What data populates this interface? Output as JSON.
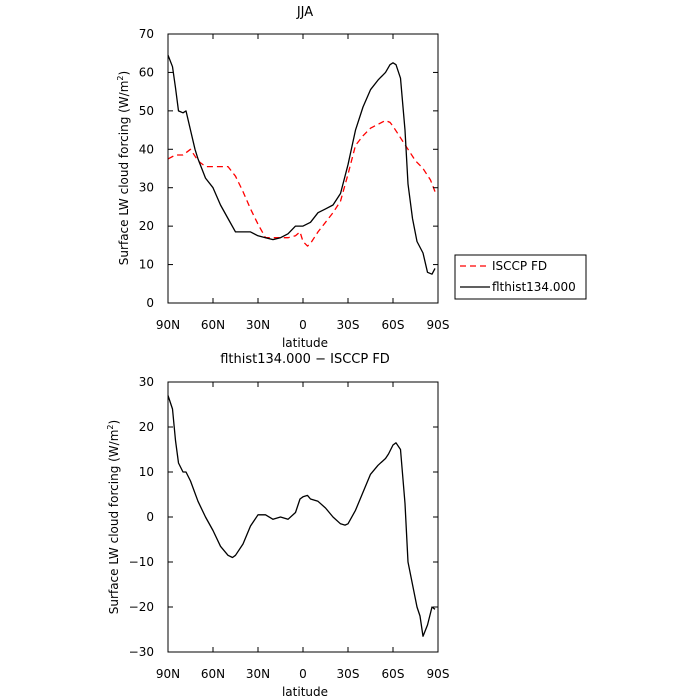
{
  "chart_data": [
    {
      "type": "line",
      "title": "JJA",
      "xlabel": "latitude",
      "ylabel": "Surface LW cloud forcing (W/m",
      "ylabel_sup": "2",
      "ylabel_end": ")",
      "xlim": [
        90,
        -90
      ],
      "ylim": [
        0,
        70
      ],
      "xticks": [
        90,
        60,
        30,
        0,
        -30,
        -60,
        -90
      ],
      "xtick_labels": [
        "90N",
        "60N",
        "30N",
        "0",
        "30S",
        "60S",
        "90S"
      ],
      "yticks": [
        0,
        10,
        20,
        30,
        40,
        50,
        60,
        70
      ],
      "ytick_labels": [
        "0",
        "10",
        "20",
        "30",
        "40",
        "50",
        "60",
        "70"
      ],
      "legend_position": "right",
      "series": [
        {
          "name": "ISCCP FD",
          "color": "#ff0000",
          "dash": "dashed",
          "x": [
            90,
            85,
            80,
            75,
            70,
            65,
            60,
            55,
            50,
            45,
            40,
            35,
            30,
            25,
            20,
            15,
            10,
            5,
            2,
            0,
            -3,
            -5,
            -10,
            -15,
            -20,
            -25,
            -30,
            -35,
            -40,
            -45,
            -50,
            -55,
            -58,
            -60,
            -65,
            -70,
            -75,
            -80,
            -85,
            -88
          ],
          "y": [
            37.5,
            38.5,
            38.5,
            40.0,
            37.0,
            35.5,
            35.5,
            35.5,
            35.5,
            33.0,
            29.0,
            24.5,
            20.5,
            17.0,
            17.0,
            17.0,
            17.0,
            17.5,
            18.5,
            16.0,
            14.8,
            15.5,
            18.5,
            21.0,
            23.5,
            26.5,
            33.5,
            41.0,
            43.5,
            45.5,
            46.5,
            47.5,
            47.0,
            46.0,
            43.0,
            40.0,
            37.0,
            35.0,
            32.0,
            29.0
          ]
        },
        {
          "name": "flthist134.000",
          "color": "#000000",
          "dash": "solid",
          "x": [
            90,
            87,
            85,
            83,
            80,
            78,
            75,
            72,
            70,
            65,
            60,
            55,
            50,
            45,
            40,
            35,
            30,
            25,
            20,
            15,
            10,
            5,
            0,
            -5,
            -10,
            -15,
            -20,
            -25,
            -30,
            -35,
            -40,
            -45,
            -50,
            -55,
            -58,
            -60,
            -62,
            -65,
            -68,
            -70,
            -73,
            -76,
            -80,
            -83,
            -86,
            -88
          ],
          "y": [
            64.5,
            61.5,
            56.0,
            50.0,
            49.5,
            50.0,
            45.0,
            40.0,
            37.5,
            32.5,
            30.0,
            25.5,
            22.0,
            18.5,
            18.5,
            18.5,
            17.5,
            17.0,
            16.5,
            17.0,
            18.0,
            20.0,
            20.0,
            21.0,
            23.5,
            24.5,
            25.5,
            28.5,
            36.0,
            45.0,
            51.0,
            55.5,
            58.0,
            60.0,
            62.0,
            62.5,
            62.0,
            58.5,
            45.0,
            31.0,
            22.0,
            16.0,
            13.0,
            8.0,
            7.5,
            9.0
          ]
        }
      ]
    },
    {
      "type": "line",
      "title": "flthist134.000 − ISCCP FD",
      "xlabel": "latitude",
      "ylabel": "Surface LW cloud forcing (W/m",
      "ylabel_sup": "2",
      "ylabel_end": ")",
      "xlim": [
        90,
        -90
      ],
      "ylim": [
        -30,
        30
      ],
      "xticks": [
        90,
        60,
        30,
        0,
        -30,
        -60,
        -90
      ],
      "xtick_labels": [
        "90N",
        "60N",
        "30N",
        "0",
        "30S",
        "60S",
        "90S"
      ],
      "yticks": [
        -30,
        -20,
        -10,
        0,
        10,
        20,
        30
      ],
      "ytick_labels": [
        "−30",
        "−20",
        "−10",
        "0",
        "10",
        "20",
        "30"
      ],
      "series": [
        {
          "name": "",
          "color": "#000000",
          "dash": "solid",
          "x": [
            90,
            87,
            85,
            83,
            80,
            78,
            75,
            70,
            65,
            60,
            55,
            50,
            47,
            45,
            40,
            35,
            30,
            25,
            20,
            15,
            10,
            5,
            2,
            0,
            -3,
            -5,
            -10,
            -15,
            -20,
            -25,
            -28,
            -30,
            -35,
            -40,
            -45,
            -50,
            -55,
            -57,
            -60,
            -62,
            -65,
            -68,
            -70,
            -73,
            -76,
            -78,
            -80,
            -83,
            -86,
            -88
          ],
          "y": [
            27.0,
            24.0,
            17.0,
            12.0,
            10.0,
            10.0,
            8.0,
            3.5,
            0.0,
            -3.0,
            -6.5,
            -8.5,
            -9.0,
            -8.5,
            -6.0,
            -2.0,
            0.5,
            0.5,
            -0.5,
            0.0,
            -0.5,
            1.0,
            4.0,
            4.5,
            4.8,
            4.0,
            3.5,
            2.0,
            0.0,
            -1.5,
            -1.8,
            -1.5,
            1.5,
            5.5,
            9.5,
            11.5,
            13.0,
            14.0,
            16.0,
            16.5,
            15.0,
            3.0,
            -10.0,
            -15.0,
            -20.0,
            -22.0,
            -26.5,
            -24.0,
            -20.0,
            -20.5
          ]
        }
      ]
    }
  ]
}
